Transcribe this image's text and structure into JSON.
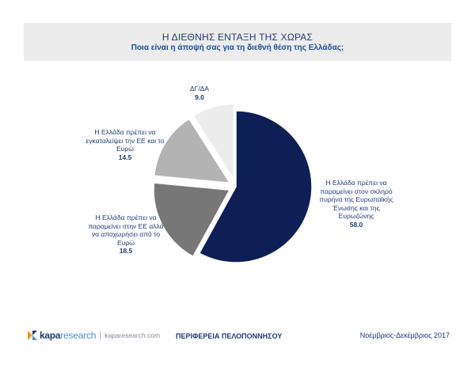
{
  "header": {
    "title": "Η ΔΙΕΘΝΗΣ ΕΝΤΑΞΗ ΤΗΣ ΧΩΡΑΣ",
    "subtitle": "Ποια είναι η άποψή σας για τη διεθνή θέση της Ελλάδας;"
  },
  "chart_data": {
    "type": "pie",
    "title": "Η ΔΙΕΘΝΗΣ ΕΝΤΑΞΗ ΤΗΣ ΧΩΡΑΣ",
    "subtitle": "Ποια είναι η άποψή σας για τη διεθνή θέση της Ελλάδας;",
    "slices": [
      {
        "label": "Η Ελλάδα πρέπει να παραμείνει στον σκληρό πυρήνα της Ευρωπαϊκής Ένωσης και της Ευρωζώνης",
        "value": 58.0,
        "value_text": "58.0",
        "color": "#0e1f55",
        "exploded": false
      },
      {
        "label": "Η Ελλάδα πρέπει να παραμείνει στην ΕΕ αλλά να αποχωρήσει από το Ευρώ",
        "value": 18.5,
        "value_text": "18.5",
        "color": "#777777",
        "exploded": true
      },
      {
        "label": "Η Ελλάδα πρέπει να εγκαταλείψει την ΕΕ και το Ευρώ",
        "value": 14.5,
        "value_text": "14.5",
        "color": "#b3b3b3",
        "exploded": true
      },
      {
        "label": "ΔΓ/ΔΑ",
        "value": 9.0,
        "value_text": "9.0",
        "color": "#ececec",
        "exploded": true
      }
    ]
  },
  "labels": [
    {
      "lines": [
        "Η Ελλάδα πρέπει να",
        "παραμείνει στον σκληρό",
        "πυρήνα της Ευρωπαϊκής",
        "Ένωσης και της",
        "Ευρωζώνης"
      ],
      "value": "58.0"
    },
    {
      "lines": [
        "Η Ελλάδα πρέπει να",
        "παραμείνει στην ΕΕ αλλά",
        "να αποχωρήσει από το",
        "Ευρώ"
      ],
      "value": "18.5"
    },
    {
      "lines": [
        "Η Ελλάδα πρέπει να",
        "εγκαταλείψει την ΕΕ και το",
        "Ευρώ"
      ],
      "value": "14.5"
    },
    {
      "lines": [
        "ΔΓ/ΔΑ"
      ],
      "value": "9.0"
    }
  ],
  "footer": {
    "logo_brand": "kapa",
    "logo_research": "research",
    "logo_sep": "|",
    "logo_site": "kaparesearch.com",
    "region": "ΠΕΡΙΦΕΡΕΙΑ ΠΕΛΟΠΟΝΝΗΣΟΥ",
    "period": "Νοέμβριος-Δεκέμβριος 2017"
  }
}
